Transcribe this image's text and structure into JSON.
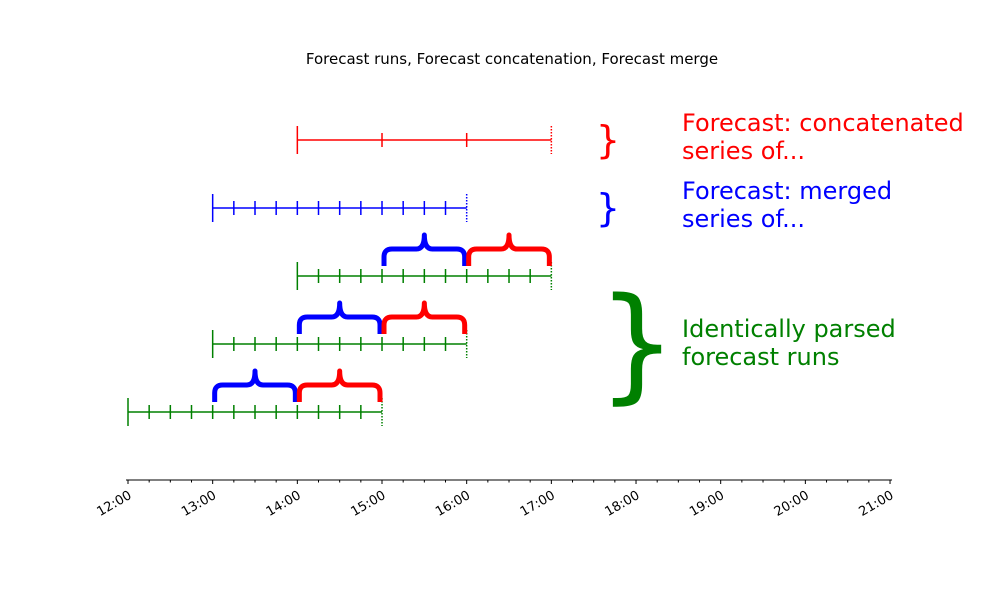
{
  "chart_data": {
    "type": "timeline",
    "title": "Forecast runs, Forecast concatenation, Forecast merge",
    "x_axis": {
      "range": [
        "12:00",
        "21:00"
      ],
      "tick_labels": [
        "12:00",
        "13:00",
        "14:00",
        "15:00",
        "16:00",
        "17:00",
        "18:00",
        "19:00",
        "20:00",
        "21:00"
      ],
      "minor_ticks_per_hour": 4
    },
    "rows": [
      {
        "id": "concatenated",
        "color": "#ff0000",
        "start": "14:00",
        "end": "17:00",
        "step_minutes": 60,
        "end_style": "dotted",
        "label_lines": [
          "Forecast: concatenated",
          "series of..."
        ]
      },
      {
        "id": "merged",
        "color": "#0000ff",
        "start": "13:00",
        "end": "16:00",
        "step_minutes": 15,
        "end_style": "dotted",
        "label_lines": [
          "Forecast: merged",
          "series of..."
        ]
      },
      {
        "id": "run_3",
        "color": "#008000",
        "start": "14:00",
        "end": "17:00",
        "step_minutes": 15,
        "end_style": "dotted",
        "blue_brace": [
          "15:00",
          "16:00"
        ],
        "red_brace": [
          "16:00",
          "17:00"
        ]
      },
      {
        "id": "run_2",
        "color": "#008000",
        "start": "13:00",
        "end": "16:00",
        "step_minutes": 15,
        "end_style": "dotted",
        "blue_brace": [
          "14:00",
          "15:00"
        ],
        "red_brace": [
          "15:00",
          "16:00"
        ]
      },
      {
        "id": "run_1",
        "color": "#008000",
        "start": "12:00",
        "end": "15:00",
        "step_minutes": 15,
        "end_style": "dotted",
        "blue_brace": [
          "13:00",
          "14:00"
        ],
        "red_brace": [
          "14:00",
          "15:00"
        ]
      }
    ],
    "group_label": {
      "lines": [
        "Identically parsed",
        "forecast runs"
      ],
      "color": "#008000",
      "rows": [
        "run_3",
        "run_2",
        "run_1"
      ]
    },
    "brace_colors": {
      "blue": "#0000ff",
      "red": "#ff0000"
    }
  }
}
